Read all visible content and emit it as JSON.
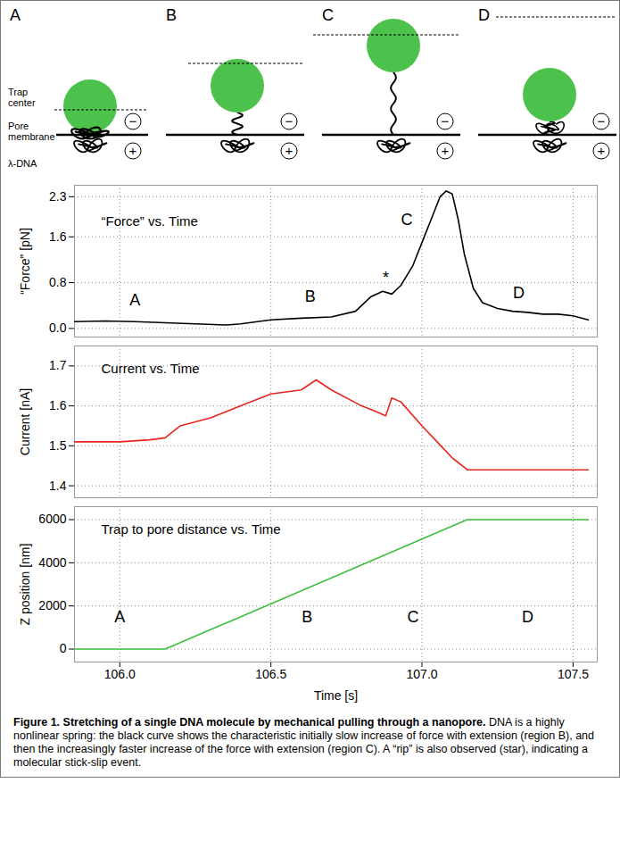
{
  "schematic": {
    "panels": [
      "A",
      "B",
      "C",
      "D"
    ],
    "labels": {
      "trap_center": "Trap center",
      "pore_membrane": "Pore membrane",
      "dna": "λ-DNA"
    },
    "charges": [
      "−",
      "+"
    ]
  },
  "chart_data": [
    {
      "type": "line",
      "title": "“Force” vs. Time",
      "y_label": "“Force” [pN]",
      "color": "#000000",
      "x": [
        105.85,
        105.95,
        106.05,
        106.15,
        106.25,
        106.35,
        106.4,
        106.5,
        106.6,
        106.7,
        106.78,
        106.83,
        106.87,
        106.9,
        106.93,
        106.97,
        107.0,
        107.03,
        107.06,
        107.08,
        107.1,
        107.12,
        107.14,
        107.17,
        107.2,
        107.25,
        107.3,
        107.35,
        107.4,
        107.45,
        107.5,
        107.55
      ],
      "values": [
        0.12,
        0.13,
        0.12,
        0.1,
        0.08,
        0.06,
        0.08,
        0.15,
        0.18,
        0.2,
        0.3,
        0.55,
        0.65,
        0.6,
        0.75,
        1.1,
        1.5,
        1.9,
        2.3,
        2.4,
        2.35,
        1.9,
        1.3,
        0.7,
        0.45,
        0.35,
        0.3,
        0.28,
        0.25,
        0.25,
        0.22,
        0.15
      ],
      "xlim": [
        105.85,
        107.58
      ],
      "xticks": [
        {
          "value": 106,
          "label": "106.0"
        },
        {
          "value": 106.5,
          "label": "106.5"
        },
        {
          "value": 107,
          "label": "107.0"
        },
        {
          "value": 107.5,
          "label": "107.5"
        }
      ],
      "ylim": [
        -0.15,
        2.5
      ],
      "yticks": [
        {
          "value": 0,
          "label": "0.0"
        },
        0.8,
        1.6,
        2.3
      ],
      "grid": true,
      "tick_labels": "y",
      "annotations": [
        {
          "text": "A",
          "x": 106.05,
          "y": 0.5
        },
        {
          "text": "B",
          "x": 106.63,
          "y": 0.55
        },
        {
          "text": "*",
          "x": 106.88,
          "y": 0.88
        },
        {
          "text": "C",
          "x": 106.95,
          "y": 1.9
        },
        {
          "text": "D",
          "x": 107.32,
          "y": 0.62
        }
      ]
    },
    {
      "type": "line",
      "title": "Current vs. Time",
      "y_label": "Current [nA]",
      "color": "#e8251f",
      "x": [
        105.85,
        106.0,
        106.1,
        106.15,
        106.2,
        106.3,
        106.4,
        106.5,
        106.6,
        106.65,
        106.7,
        106.8,
        106.85,
        106.88,
        106.9,
        106.93,
        107.0,
        107.05,
        107.1,
        107.15,
        107.3,
        107.55
      ],
      "values": [
        1.51,
        1.51,
        1.515,
        1.52,
        1.55,
        1.57,
        1.6,
        1.63,
        1.64,
        1.665,
        1.64,
        1.6,
        1.585,
        1.575,
        1.62,
        1.61,
        1.55,
        1.51,
        1.47,
        1.44,
        1.44,
        1.44
      ],
      "xlim": [
        105.85,
        107.58
      ],
      "xticks": [
        {
          "value": 106,
          "label": "106.0"
        },
        {
          "value": 106.5,
          "label": "106.5"
        },
        {
          "value": 107,
          "label": "107.0"
        },
        {
          "value": 107.5,
          "label": "107.5"
        }
      ],
      "ylim": [
        1.37,
        1.75
      ],
      "yticks": [
        1.4,
        1.5,
        1.6,
        1.7
      ],
      "grid": true,
      "tick_labels": "y"
    },
    {
      "type": "line",
      "title": "Trap to pore distance vs. Time",
      "x_label": "Time [s]",
      "y_label": "Z position [nm]",
      "color": "#3cbf3c",
      "x": [
        105.85,
        106.15,
        107.15,
        107.55
      ],
      "values": [
        0,
        0,
        6000,
        6000
      ],
      "xlim": [
        105.85,
        107.58
      ],
      "xticks": [
        {
          "value": 106,
          "label": "106.0"
        },
        {
          "value": 106.5,
          "label": "106.5"
        },
        {
          "value": 107,
          "label": "107.0"
        },
        {
          "value": 107.5,
          "label": "107.5"
        }
      ],
      "ylim": [
        -600,
        6600
      ],
      "yticks": [
        0,
        2000,
        4000,
        6000
      ],
      "grid": true,
      "annotations": [
        {
          "text": "A",
          "x": 106.0,
          "y": 1500
        },
        {
          "text": "B",
          "x": 106.62,
          "y": 1500
        },
        {
          "text": "C",
          "x": 106.97,
          "y": 1500
        },
        {
          "text": "D",
          "x": 107.35,
          "y": 1500
        }
      ]
    }
  ],
  "caption": {
    "title": "Figure 1. Stretching of a single DNA molecule by mechanical pulling through a nanopore.",
    "text": "DNA is a highly nonlinear spring: the black curve shows the characteristic initially slow increase of force with extension (region B), and then the increasingly faster increase of the force with extension (region C). A “rip” is also observed (star), indicating a molecular stick-slip event."
  }
}
